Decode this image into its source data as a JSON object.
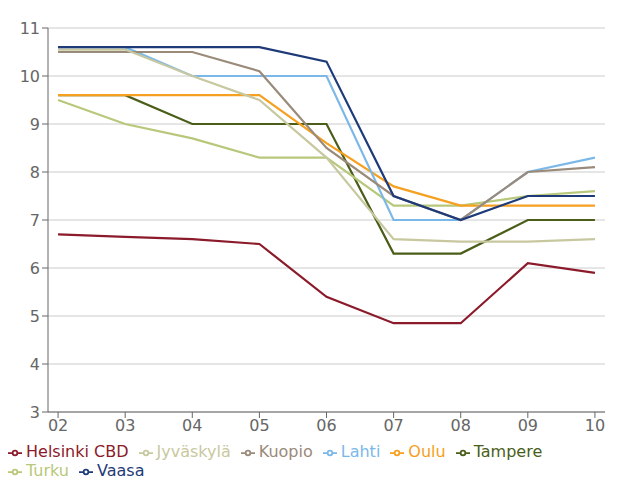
{
  "chart_data": {
    "type": "line",
    "x": [
      2,
      3,
      4,
      5,
      6,
      7,
      8,
      9,
      10
    ],
    "series": [
      {
        "name": "Helsinki CBD",
        "color": "#8B1A2A",
        "values": [
          6.7,
          6.65,
          6.6,
          6.5,
          5.4,
          4.85,
          4.85,
          6.1,
          5.9
        ]
      },
      {
        "name": "Tampere",
        "color": "#4A5E1A",
        "values": [
          9.6,
          9.6,
          9.0,
          9.0,
          9.0,
          6.3,
          6.3,
          7.0,
          7.0
        ]
      },
      {
        "name": "Turku",
        "color": "#B8C87A",
        "values": [
          9.5,
          9.0,
          8.7,
          8.3,
          8.3,
          7.3,
          7.3,
          7.5,
          7.6
        ]
      },
      {
        "name": "Oulu",
        "color": "#F5A020",
        "values": [
          9.6,
          9.6,
          9.6,
          9.6,
          8.6,
          7.7,
          7.3,
          7.3,
          7.3
        ]
      },
      {
        "name": "Lahti",
        "color": "#7BB8E8",
        "values": [
          10.6,
          10.6,
          10.0,
          10.0,
          10.0,
          7.0,
          7.0,
          8.0,
          8.3
        ]
      },
      {
        "name": "Kuopio",
        "color": "#9A8A7A",
        "values": [
          10.5,
          10.5,
          10.5,
          10.1,
          8.5,
          7.5,
          7.0,
          8.0,
          8.1
        ]
      },
      {
        "name": "Jyväskylä",
        "color": "#C8C8A0",
        "values": [
          10.55,
          10.55,
          10.0,
          9.5,
          8.3,
          6.6,
          6.55,
          6.55,
          6.6
        ]
      },
      {
        "name": "Vaasa",
        "color": "#1E3A78",
        "values": [
          10.6,
          10.6,
          10.6,
          10.6,
          10.3,
          7.5,
          7.0,
          7.5,
          7.5
        ]
      }
    ],
    "xlim": [
      1.85,
      10.15
    ],
    "xticks": [
      {
        "value": 2,
        "label": "02"
      },
      {
        "value": 3,
        "label": "03"
      },
      {
        "value": 4,
        "label": "04"
      },
      {
        "value": 5,
        "label": "05"
      },
      {
        "value": 6,
        "label": "06"
      },
      {
        "value": 7,
        "label": "07"
      },
      {
        "value": 8,
        "label": "08"
      },
      {
        "value": 9,
        "label": "09"
      },
      {
        "value": 10,
        "label": "10"
      }
    ],
    "ylim": [
      3,
      11
    ],
    "yticks": [
      3,
      4,
      5,
      6,
      7,
      8,
      9,
      10,
      11
    ],
    "grid": true,
    "legend": "bottom"
  }
}
